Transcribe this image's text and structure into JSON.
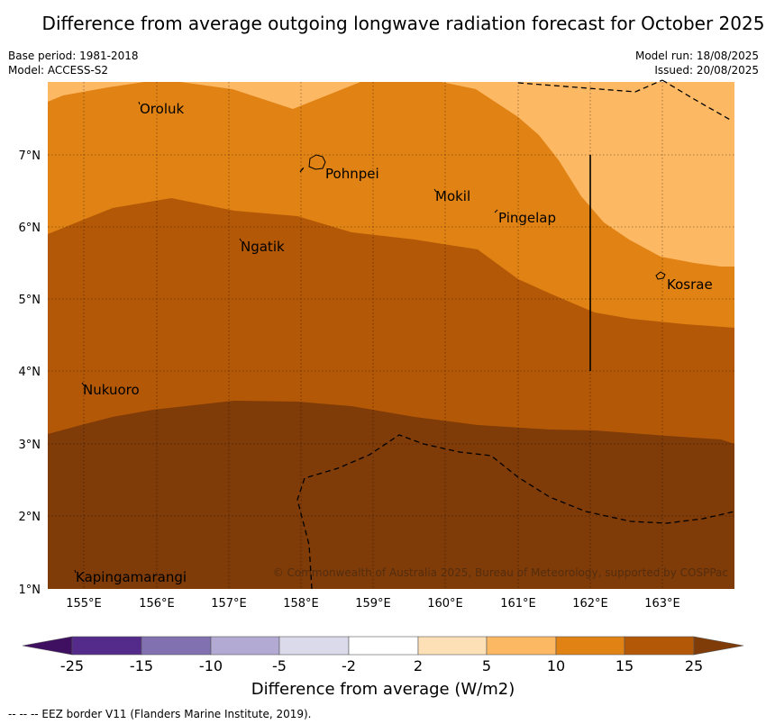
{
  "title": "Difference from average outgoing longwave radiation forecast for October 2025",
  "meta": {
    "base_period": "Base period: 1981-2018",
    "model": "Model: ACCESS-S2",
    "model_run": "Model run: 18/08/2025",
    "issued": "Issued: 20/08/2025"
  },
  "map": {
    "x_ticks": [
      "155°E",
      "156°E",
      "157°E",
      "158°E",
      "159°E",
      "160°E",
      "161°E",
      "162°E",
      "163°E"
    ],
    "y_ticks": [
      "7°N",
      "6°N",
      "5°N",
      "4°N",
      "3°N",
      "2°N",
      "1°N"
    ],
    "places": [
      {
        "name": "Oroluk"
      },
      {
        "name": "Pohnpei"
      },
      {
        "name": "Mokil"
      },
      {
        "name": "Pingelap"
      },
      {
        "name": "Ngatik"
      },
      {
        "name": "Kosrae"
      },
      {
        "name": "Nukuoro"
      },
      {
        "name": "Kapingamarangi"
      }
    ],
    "copyright": "© Commonwealth of Australia 2025, Bureau of Meteorology, supported by COSPPac"
  },
  "colorbar": {
    "title": "Difference from average (W/m2)",
    "labels": [
      "-25",
      "-15",
      "-10",
      "-5",
      "-2",
      "2",
      "5",
      "10",
      "15",
      "25"
    ],
    "colors": [
      "#3f1061",
      "#542a8b",
      "#8171b0",
      "#b3aad4",
      "#dadaeb",
      "#ffffff",
      "#fee0b6",
      "#fdb863",
      "#e08214",
      "#b35806",
      "#7f3b08"
    ]
  },
  "legend_footnote": "--  --  -- EEZ border V11 (Flanders Marine Institute, 2019)."
}
